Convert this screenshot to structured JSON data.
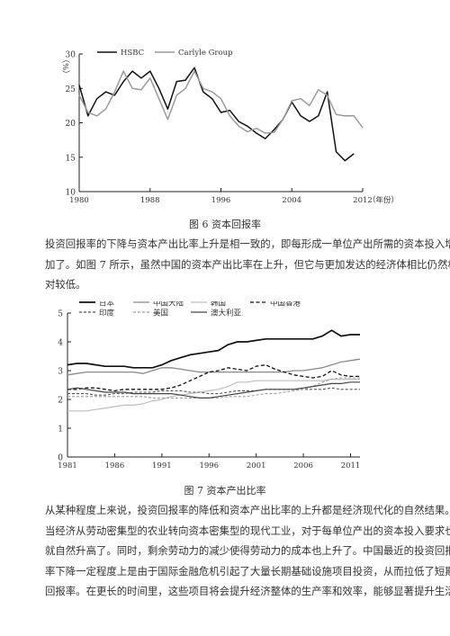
{
  "figure6": {
    "caption": "图 6 资本回报率",
    "chart_data": {
      "type": "line",
      "title": "",
      "ylabel": "（%）",
      "xlabel": "（年份）",
      "xlim": [
        1980,
        2012
      ],
      "ylim": [
        10,
        30
      ],
      "xticks": [
        "1980",
        "1988",
        "1996",
        "2004",
        "2012"
      ],
      "yticks": [
        "10",
        "15",
        "20",
        "25",
        "30"
      ],
      "legend_position": "top",
      "series": [
        {
          "name": "HSBC",
          "color": "#111111",
          "x": [
            1980,
            1981,
            1982,
            1983,
            1984,
            1985,
            1986,
            1987,
            1988,
            1989,
            1990,
            1991,
            1992,
            1993,
            1994,
            1995,
            1996,
            1997,
            1998,
            1999,
            2000,
            2001,
            2002,
            2003,
            2004,
            2005,
            2006,
            2007,
            2008,
            2009,
            2010,
            2011
          ],
          "values": [
            25.5,
            21.0,
            23.5,
            24.5,
            24.0,
            26.0,
            27.5,
            26.5,
            27.5,
            25.0,
            22.0,
            26.0,
            26.2,
            28.0,
            24.5,
            23.5,
            21.5,
            21.8,
            20.2,
            19.5,
            18.5,
            17.7,
            19.0,
            20.5,
            23.0,
            21.0,
            20.2,
            21.0,
            24.5,
            15.8,
            14.5,
            15.5
          ]
        },
        {
          "name": "Carlyle Group",
          "color": "#9a9a9a",
          "x": [
            1980,
            1981,
            1982,
            1983,
            1984,
            1985,
            1986,
            1987,
            1988,
            1989,
            1990,
            1991,
            1992,
            1993,
            1994,
            1995,
            1996,
            1997,
            1998,
            1999,
            2000,
            2001,
            2002,
            2003,
            2004,
            2005,
            2006,
            2007,
            2008,
            2009,
            2010,
            2011,
            2012
          ],
          "values": [
            24.0,
            21.5,
            21.0,
            22.0,
            24.5,
            27.5,
            25.0,
            24.8,
            26.5,
            23.5,
            20.5,
            24.0,
            25.0,
            27.5,
            25.0,
            24.5,
            23.5,
            21.0,
            19.5,
            18.7,
            19.2,
            18.5,
            18.6,
            20.5,
            23.2,
            23.5,
            22.5,
            24.8,
            24.0,
            21.2,
            21.0,
            21.0,
            19.3
          ]
        }
      ]
    }
  },
  "paragraph1": {
    "lines": [
      "投资回报率的下降与资本产出比率上升是相一致的，即每形成一单位产出所需的资本投入增",
      "加了。如图 7 所示，虽然中国的资本产出比率在上升，但它与更加发达的经济体相比仍然相",
      "对较低。"
    ]
  },
  "figure7": {
    "caption": "图 7 资本产出比率",
    "chart_data": {
      "type": "line",
      "title": "",
      "xlabel": "",
      "ylabel": "",
      "xlim": [
        1981,
        2012
      ],
      "ylim": [
        0,
        5
      ],
      "xticks": [
        "1981",
        "1986",
        "1991",
        "1996",
        "2001",
        "2006",
        "2011"
      ],
      "yticks": [
        "0",
        "1",
        "2",
        "3",
        "4",
        "5"
      ],
      "legend_position": "top",
      "x": [
        1981,
        1982,
        1983,
        1984,
        1985,
        1986,
        1987,
        1988,
        1989,
        1990,
        1991,
        1992,
        1993,
        1994,
        1995,
        1996,
        1997,
        1998,
        1999,
        2000,
        2001,
        2002,
        2003,
        2004,
        2005,
        2006,
        2007,
        2008,
        2009,
        2010,
        2011,
        2012
      ],
      "series": [
        {
          "name": "日本",
          "color": "#111111",
          "dash": "",
          "width": 1.7,
          "values": [
            3.2,
            3.25,
            3.25,
            3.2,
            3.15,
            3.15,
            3.15,
            3.1,
            3.1,
            3.1,
            3.2,
            3.35,
            3.45,
            3.55,
            3.6,
            3.65,
            3.7,
            3.9,
            4.0,
            4.0,
            4.05,
            4.1,
            4.1,
            4.1,
            4.1,
            4.1,
            4.1,
            4.2,
            4.4,
            4.2,
            4.25,
            4.25
          ]
        },
        {
          "name": "中国大陆",
          "color": "#8a8a8a",
          "dash": "",
          "width": 1.3,
          "values": [
            2.85,
            2.9,
            2.95,
            2.95,
            2.95,
            2.95,
            2.95,
            2.95,
            2.9,
            3.0,
            3.1,
            3.1,
            3.05,
            3.0,
            2.95,
            2.95,
            2.95,
            2.95,
            2.95,
            2.95,
            2.95,
            2.95,
            2.95,
            2.95,
            3.0,
            3.0,
            3.05,
            3.1,
            3.2,
            3.3,
            3.35,
            3.4
          ]
        },
        {
          "name": "韩国",
          "color": "#bdbdbd",
          "dash": "",
          "width": 1.2,
          "values": [
            1.6,
            1.6,
            1.6,
            1.65,
            1.7,
            1.75,
            1.8,
            1.8,
            1.85,
            1.95,
            2.0,
            2.1,
            2.15,
            2.2,
            2.25,
            2.3,
            2.35,
            2.45,
            2.6,
            2.6,
            2.65,
            2.65,
            2.65,
            2.65,
            2.65,
            2.65,
            2.65,
            2.65,
            2.7,
            2.7,
            2.7,
            2.7
          ]
        },
        {
          "name": "中国香港",
          "color": "#111111",
          "dash": "4,2.5",
          "width": 1.3,
          "values": [
            2.35,
            2.35,
            2.4,
            2.4,
            2.35,
            2.3,
            2.35,
            2.35,
            2.35,
            2.35,
            2.35,
            2.4,
            2.5,
            2.65,
            2.8,
            2.95,
            3.0,
            3.1,
            3.05,
            3.0,
            3.15,
            3.2,
            3.05,
            2.95,
            2.85,
            2.8,
            2.75,
            2.8,
            3.0,
            2.85,
            2.8,
            2.8
          ]
        },
        {
          "name": "印度",
          "color": "#555555",
          "dash": "3,2",
          "width": 1.1,
          "values": [
            2.2,
            2.2,
            2.2,
            2.15,
            2.15,
            2.2,
            2.2,
            2.25,
            2.25,
            2.25,
            2.3,
            2.3,
            2.3,
            2.25,
            2.25,
            2.2,
            2.2,
            2.25,
            2.3,
            2.3,
            2.3,
            2.35,
            2.35,
            2.35,
            2.35,
            2.35,
            2.35,
            2.35,
            2.4,
            2.35,
            2.35,
            2.35
          ]
        },
        {
          "name": "美国",
          "color": "#9f9f9f",
          "dash": "3,2",
          "width": 1.1,
          "values": [
            2.1,
            2.1,
            2.1,
            2.1,
            2.1,
            2.1,
            2.1,
            2.1,
            2.1,
            2.05,
            2.05,
            2.05,
            2.05,
            2.05,
            2.05,
            2.05,
            2.05,
            2.1,
            2.1,
            2.1,
            2.15,
            2.2,
            2.2,
            2.25,
            2.3,
            2.35,
            2.45,
            2.6,
            2.7,
            2.75,
            2.75,
            2.75
          ]
        },
        {
          "name": "澳大利亚",
          "color": "#444444",
          "dash": "",
          "width": 1.2,
          "values": [
            2.35,
            2.4,
            2.35,
            2.3,
            2.25,
            2.25,
            2.25,
            2.2,
            2.2,
            2.2,
            2.2,
            2.2,
            2.15,
            2.1,
            2.05,
            2.05,
            2.1,
            2.15,
            2.2,
            2.25,
            2.3,
            2.35,
            2.35,
            2.35,
            2.35,
            2.4,
            2.45,
            2.5,
            2.55,
            2.55,
            2.6,
            2.6
          ]
        }
      ]
    }
  },
  "paragraph2": {
    "lines": [
      "从某种程度上来说，投资回报率的降低和资本产出比率的上升都是经济现代化的自然结果。",
      "当经济从劳动密集型的农业转向资本密集型的现代工业，对于每单位产出的资本投入要求也",
      "就自然升高了。同时，剩余劳动力的减少使得劳动力的成本也上升了。中国最近的投资回报",
      "率下降一定程度上是由于国际金融危机引起了大量长期基础设施项目投资，从而拉低了短期",
      "回报率。在更长的时间里，这些项目将会提升经济整体的生产率和效率，能够显著提升生活"
    ]
  }
}
